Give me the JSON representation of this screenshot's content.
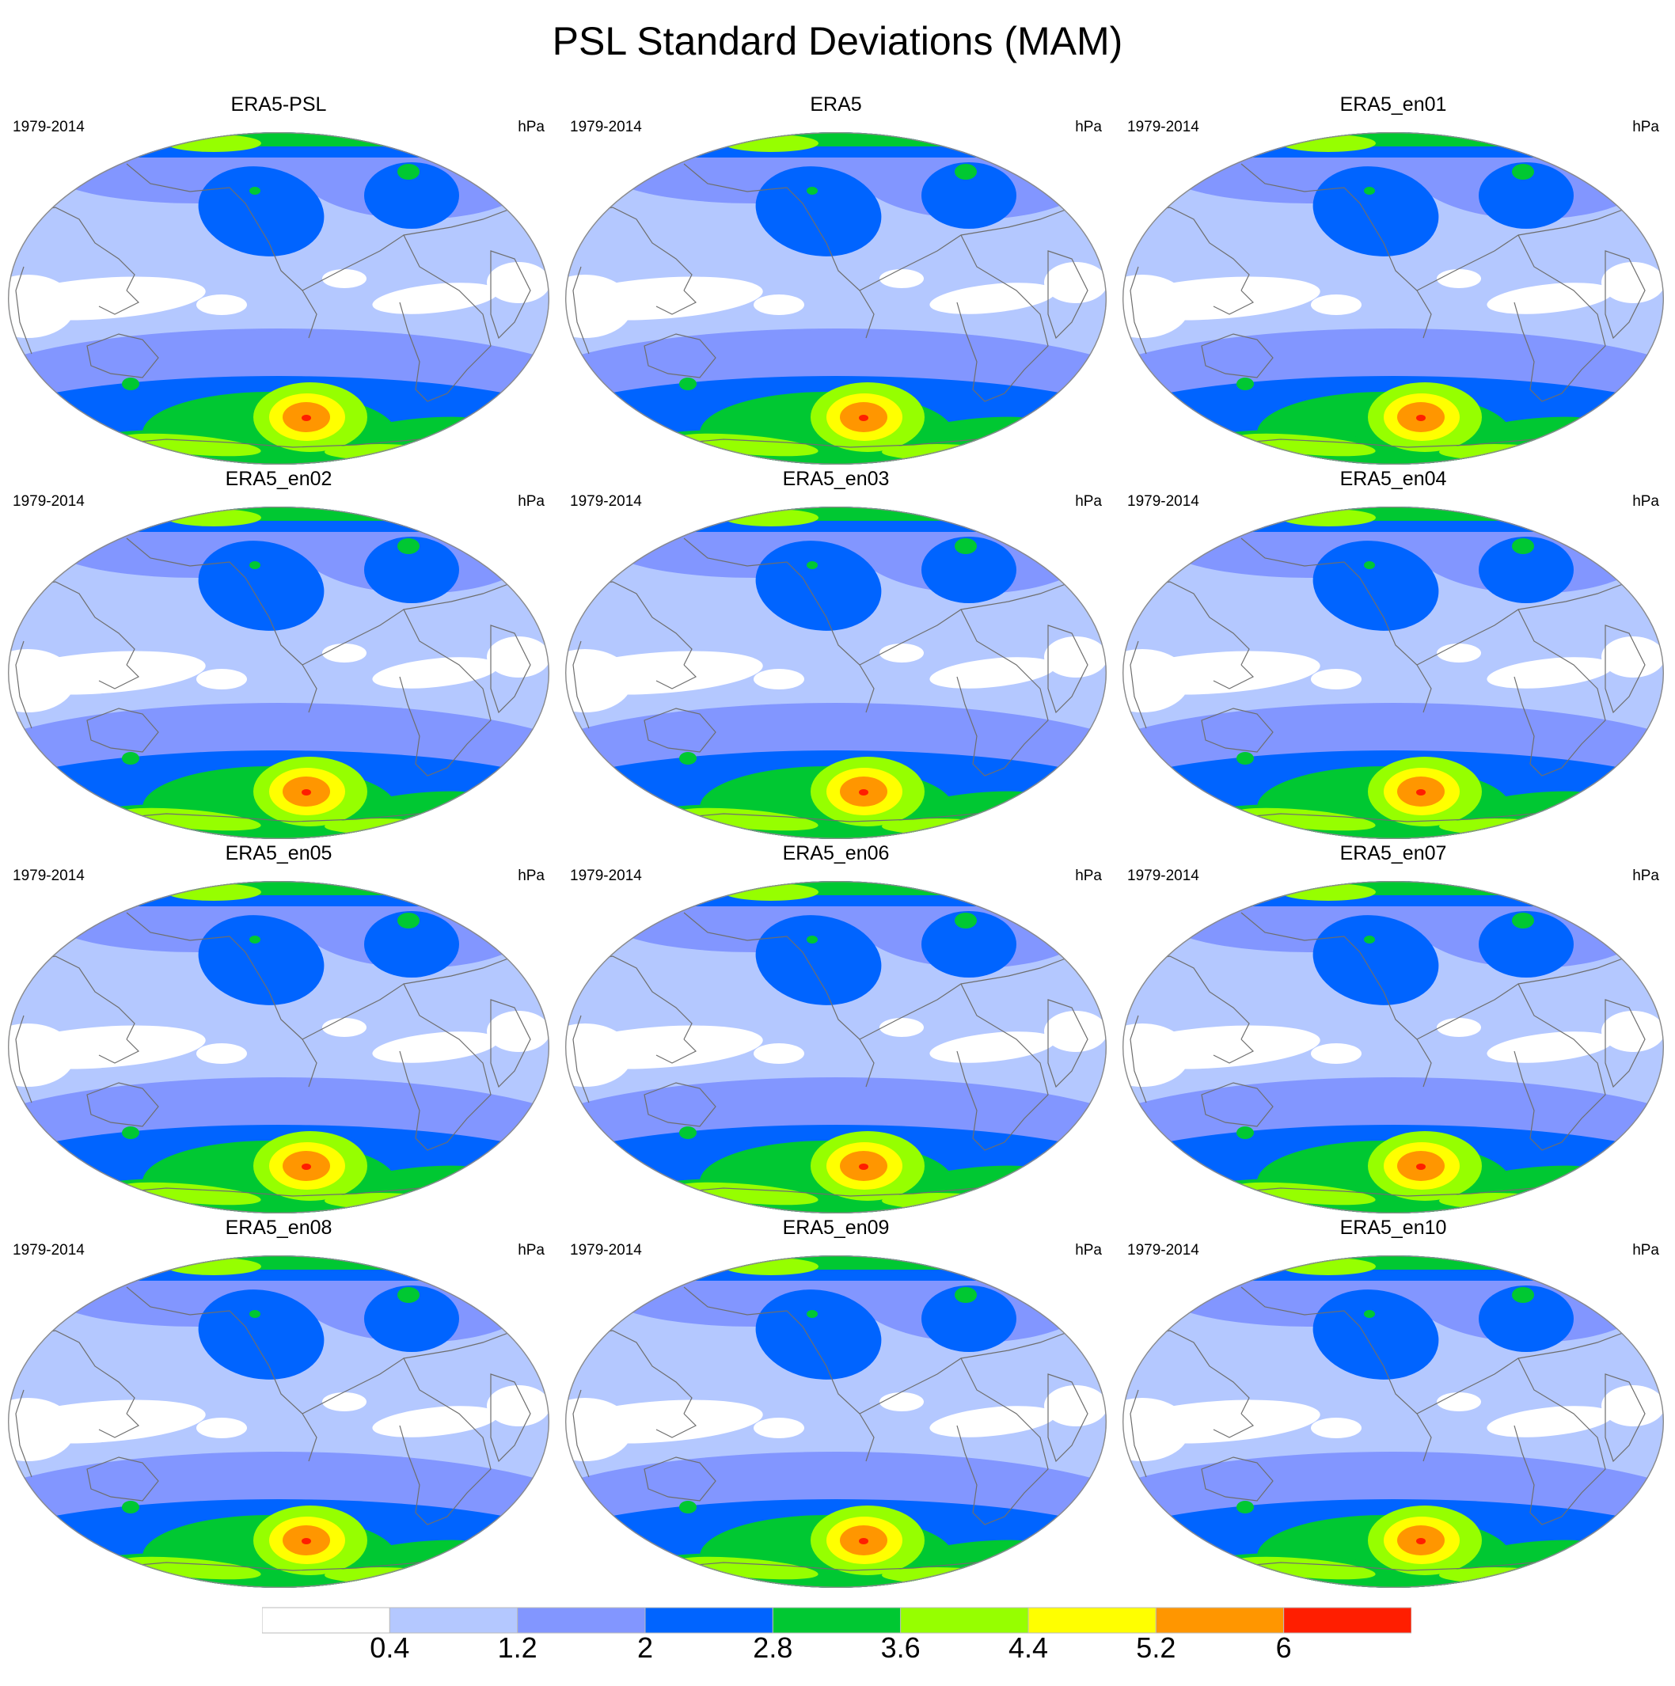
{
  "title": "PSL Standard Deviations (MAM)",
  "panels": [
    {
      "title": "ERA5-PSL",
      "left_label": "1979-2014",
      "right_label": "hPa"
    },
    {
      "title": "ERA5",
      "left_label": "1979-2014",
      "right_label": "hPa"
    },
    {
      "title": "ERA5_en01",
      "left_label": "1979-2014",
      "right_label": "hPa"
    },
    {
      "title": "ERA5_en02",
      "left_label": "1979-2014",
      "right_label": "hPa"
    },
    {
      "title": "ERA5_en03",
      "left_label": "1979-2014",
      "right_label": "hPa"
    },
    {
      "title": "ERA5_en04",
      "left_label": "1979-2014",
      "right_label": "hPa"
    },
    {
      "title": "ERA5_en05",
      "left_label": "1979-2014",
      "right_label": "hPa"
    },
    {
      "title": "ERA5_en06",
      "left_label": "1979-2014",
      "right_label": "hPa"
    },
    {
      "title": "ERA5_en07",
      "left_label": "1979-2014",
      "right_label": "hPa"
    },
    {
      "title": "ERA5_en08",
      "left_label": "1979-2014",
      "right_label": "hPa"
    },
    {
      "title": "ERA5_en09",
      "left_label": "1979-2014",
      "right_label": "hPa"
    },
    {
      "title": "ERA5_en10",
      "left_label": "1979-2014",
      "right_label": "hPa"
    }
  ],
  "colorbar": {
    "levels": [
      "0.4",
      "1.2",
      "2",
      "2.8",
      "3.6",
      "4.4",
      "5.2",
      "6"
    ],
    "colors": [
      "#ffffff",
      "#b4c8ff",
      "#8296ff",
      "#0064ff",
      "#00c832",
      "#96ff00",
      "#ffff00",
      "#ff9600",
      "#ff1e00"
    ]
  }
}
